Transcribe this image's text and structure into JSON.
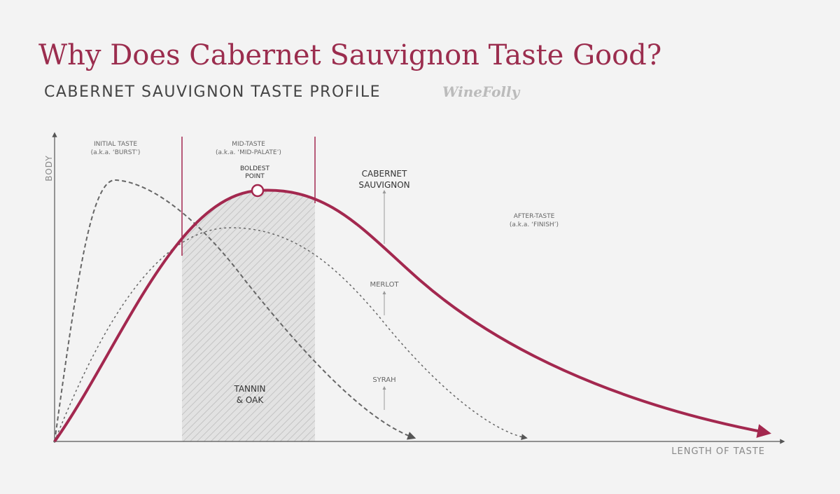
{
  "header": {
    "title": "Why Does Cabernet Sauvignon Taste Good?",
    "subtitle": "CABERNET SAUVIGNON TASTE PROFILE",
    "brand": "WineFolly"
  },
  "axes": {
    "y": "BODY",
    "x": "LENGTH OF TASTE"
  },
  "phases": [
    {
      "label": "INITIAL TASTE",
      "note": "(a.k.a. ‘BURST’)"
    },
    {
      "label": "MID-TASTE",
      "note": "(a.k.a. ‘MID-PALATE’)"
    },
    {
      "label": "AFTER-TASTE",
      "note": "(a.k.a. ‘FINISH’)"
    }
  ],
  "boldest_point": [
    "BOLDEST",
    "POINT"
  ],
  "curves": [
    {
      "label": [
        "CABERNET",
        "SAUVIGNON"
      ]
    },
    {
      "label": [
        "MERLOT"
      ]
    },
    {
      "label": [
        "SYRAH"
      ]
    }
  ],
  "region": {
    "label": [
      "TANNIN",
      "& OAK"
    ]
  }
}
